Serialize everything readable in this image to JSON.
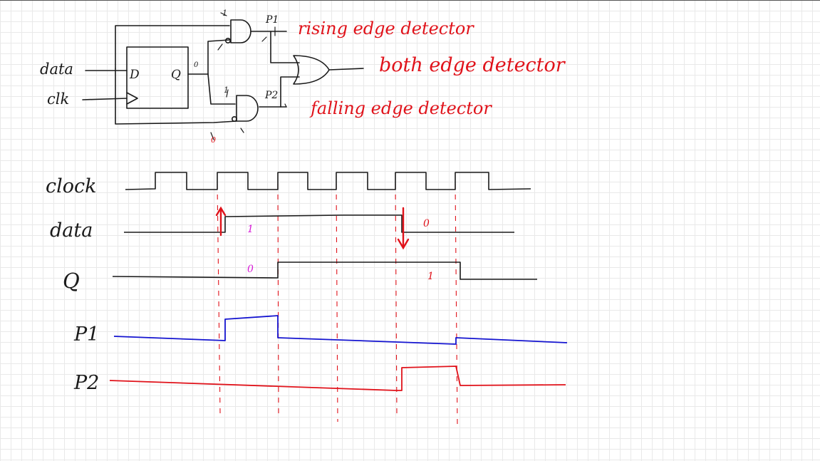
{
  "circuit": {
    "inputs": {
      "data": "data",
      "clk": "clk"
    },
    "flipflop": {
      "d_pin": "D",
      "q_pin": "Q"
    },
    "q_state": "0",
    "gate_inputs": {
      "and1_top": "1",
      "and2_top": "1",
      "and2_bottom": "0"
    },
    "probes": {
      "p1": "P1",
      "p2": "P2"
    },
    "annotations": {
      "rising": "rising edge detector",
      "both": "both edge detector",
      "falling": "falling edge detector"
    }
  },
  "timing": {
    "signals": [
      {
        "label": "clock",
        "color": "#1a1a1a"
      },
      {
        "label": "data",
        "color": "#1a1a1a"
      },
      {
        "label": "Q",
        "color": "#1a1a1a"
      },
      {
        "label": "P1",
        "color": "#1414d0"
      },
      {
        "label": "P2",
        "color": "#e0121a"
      }
    ],
    "value_notes": {
      "data_high": "1",
      "data_low": "0",
      "q_low": "0",
      "q_high": "1"
    }
  }
}
